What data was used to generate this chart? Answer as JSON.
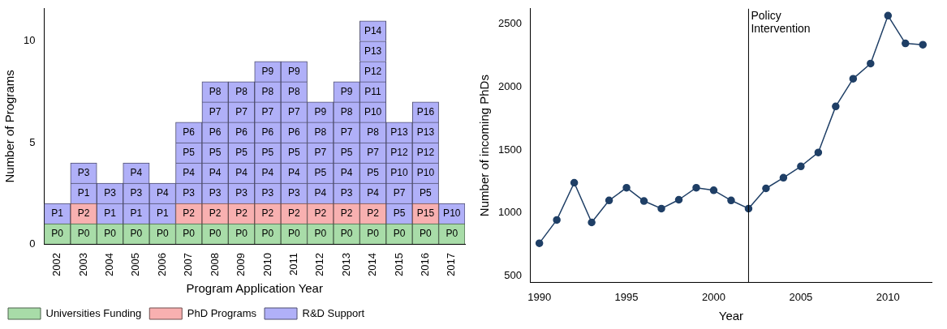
{
  "chart_data": [
    {
      "type": "bar",
      "stacked": true,
      "xlabel": "Program Application Year",
      "ylabel": "Number of Programs",
      "categories": [
        "2002",
        "2003",
        "2004",
        "2005",
        "2006",
        "2007",
        "2008",
        "2009",
        "2010",
        "2011",
        "2012",
        "2013",
        "2014",
        "2015",
        "2016",
        "2017"
      ],
      "ylim": [
        0,
        11.6
      ],
      "yticks": [
        0,
        5,
        10
      ],
      "grid": false,
      "legend": "bottom",
      "series": [
        {
          "name": "Universities Funding",
          "color": "#a8dca8",
          "values": [
            1,
            1,
            1,
            1,
            1,
            1,
            1,
            1,
            1,
            1,
            1,
            1,
            1,
            1,
            1,
            1
          ],
          "value_labels": [
            "P0",
            "P0",
            "P0",
            "P0",
            "P0",
            "P0",
            "P0",
            "P0",
            "P0",
            "P0",
            "P0",
            "P0",
            "P0",
            "P0",
            "P0",
            "P0"
          ]
        },
        {
          "name": "PhD Programs",
          "color": "#f8b0b0",
          "values": [
            null,
            1,
            null,
            null,
            null,
            1,
            1,
            1,
            1,
            1,
            1,
            1,
            1,
            null,
            1,
            null
          ],
          "value_labels": [
            null,
            "P2",
            null,
            null,
            null,
            "P2",
            "P2",
            "P2",
            "P2",
            "P2",
            "P2",
            "P2",
            "P2",
            null,
            "P15",
            null
          ]
        },
        {
          "name": "R&D Support",
          "color": "#b0b0f8",
          "values": [
            1,
            1,
            1,
            1,
            1,
            1,
            1,
            1,
            1,
            1,
            1,
            1,
            1,
            1,
            1,
            1
          ],
          "value_labels": [
            "P1",
            "P1",
            "P1",
            "P1",
            "P1",
            "P3",
            "P3",
            "P3",
            "P3",
            "P3",
            "P4",
            "P3",
            "P4",
            "P5",
            "P5",
            "P10"
          ]
        },
        {
          "color": "#b0b0f8",
          "values": [
            null,
            1,
            1,
            1,
            1,
            1,
            1,
            1,
            1,
            1,
            1,
            1,
            1,
            1,
            1,
            null
          ],
          "value_labels": [
            null,
            "P3",
            "P3",
            "P3",
            "P4",
            "P4",
            "P4",
            "P4",
            "P4",
            "P4",
            "P5",
            "P4",
            "P5",
            "P7",
            "P10",
            null
          ]
        },
        {
          "color": "#b0b0f8",
          "values": [
            null,
            null,
            null,
            1,
            null,
            1,
            1,
            1,
            1,
            1,
            1,
            1,
            1,
            1,
            1,
            null
          ],
          "value_labels": [
            null,
            null,
            null,
            "P4",
            null,
            "P5",
            "P5",
            "P5",
            "P5",
            "P5",
            "P7",
            "P5",
            "P7",
            "P10",
            "P12",
            null
          ]
        },
        {
          "color": "#b0b0f8",
          "values": [
            null,
            null,
            null,
            null,
            null,
            1,
            1,
            1,
            1,
            1,
            1,
            1,
            1,
            1,
            1,
            null
          ],
          "value_labels": [
            null,
            null,
            null,
            null,
            null,
            "P6",
            "P6",
            "P6",
            "P6",
            "P6",
            "P8",
            "P7",
            "P8",
            "P12",
            "P13",
            null
          ]
        },
        {
          "color": "#b0b0f8",
          "values": [
            null,
            null,
            null,
            null,
            null,
            null,
            1,
            1,
            1,
            1,
            1,
            1,
            1,
            1,
            1,
            null
          ],
          "value_labels": [
            null,
            null,
            null,
            null,
            null,
            null,
            "P7",
            "P7",
            "P7",
            "P7",
            "P9",
            "P8",
            "P10",
            "P13",
            "P16",
            null
          ]
        },
        {
          "color": "#b0b0f8",
          "values": [
            null,
            null,
            null,
            null,
            null,
            null,
            1,
            1,
            1,
            1,
            null,
            1,
            1,
            null,
            null,
            null
          ],
          "value_labels": [
            null,
            null,
            null,
            null,
            null,
            null,
            "P8",
            "P8",
            "P8",
            "P8",
            null,
            "P9",
            "P11",
            null,
            null,
            null
          ]
        },
        {
          "color": "#b0b0f8",
          "values": [
            null,
            null,
            null,
            null,
            null,
            null,
            null,
            null,
            1,
            1,
            null,
            null,
            1,
            null,
            null,
            null
          ],
          "value_labels": [
            null,
            null,
            null,
            null,
            null,
            null,
            null,
            null,
            "P9",
            "P9",
            null,
            null,
            "P12",
            null,
            null,
            null
          ]
        },
        {
          "color": "#b0b0f8",
          "values": [
            null,
            null,
            null,
            null,
            null,
            null,
            null,
            null,
            null,
            null,
            null,
            null,
            1,
            null,
            null,
            null
          ],
          "value_labels": [
            null,
            null,
            null,
            null,
            null,
            null,
            null,
            null,
            null,
            null,
            null,
            null,
            "P13",
            null,
            null,
            null
          ]
        },
        {
          "color": "#b0b0f8",
          "values": [
            null,
            null,
            null,
            null,
            null,
            null,
            null,
            null,
            null,
            null,
            null,
            null,
            1,
            null,
            null,
            null
          ],
          "value_labels": [
            null,
            null,
            null,
            null,
            null,
            null,
            null,
            null,
            null,
            null,
            null,
            null,
            "P14",
            null,
            null,
            null
          ]
        }
      ]
    },
    {
      "type": "line",
      "xlabel": "Year",
      "ylabel": "Number of incoming PhDs",
      "x": [
        1990,
        1991,
        1992,
        1993,
        1994,
        1995,
        1996,
        1997,
        1998,
        1999,
        2000,
        2001,
        2002,
        2003,
        2004,
        2005,
        2006,
        2007,
        2008,
        2009,
        2010,
        2011,
        2012
      ],
      "xlim": [
        1989.5,
        2012.5
      ],
      "xticks": [
        1990,
        1995,
        2000,
        2005,
        2010
      ],
      "ylim": [
        450,
        2620
      ],
      "yticks": [
        500,
        1000,
        1500,
        2000,
        2500
      ],
      "grid": false,
      "legend": false,
      "marker": "circle",
      "series": [
        {
          "color": "#1f3f66",
          "values": [
            760,
            945,
            1240,
            925,
            1100,
            1200,
            1095,
            1035,
            1105,
            1200,
            1180,
            1100,
            1035,
            1195,
            1280,
            1370,
            1480,
            1845,
            2065,
            2185,
            2565,
            2345,
            2335
          ]
        }
      ],
      "ref_lines": [
        {
          "axis": "x",
          "value": 2002,
          "label": "Policy\nIntervention",
          "color": "#000000"
        }
      ]
    }
  ]
}
